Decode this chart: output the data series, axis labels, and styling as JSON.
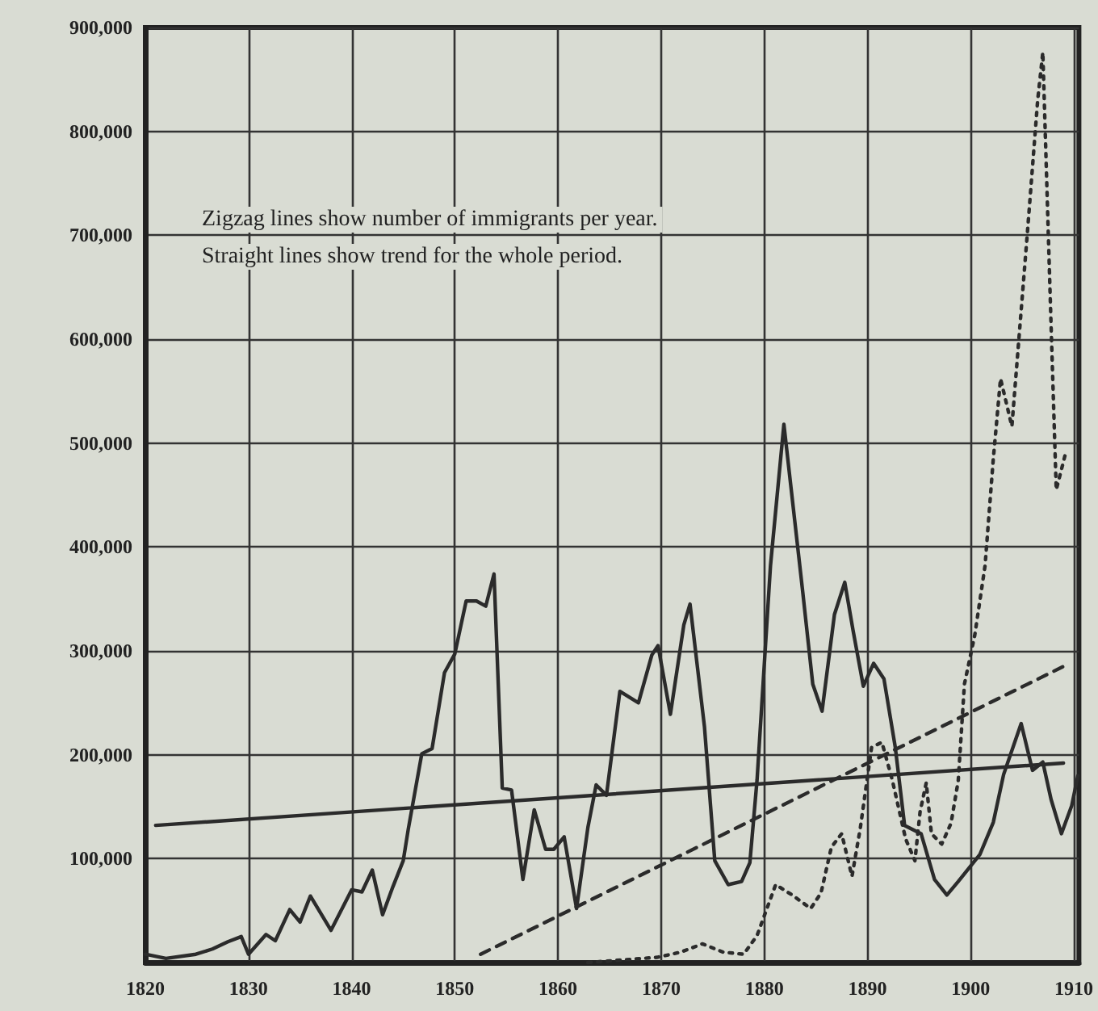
{
  "chart_data": {
    "type": "line",
    "annotations": [
      "Zigzag lines show number of immigrants per year.",
      "Straight lines show trend for the whole period."
    ],
    "xlim": [
      1820,
      1910.5
    ],
    "xticks": [
      1820,
      1830,
      1840,
      1850,
      1860,
      1870,
      1880,
      1890,
      1900,
      1910
    ],
    "ylim": [
      0,
      900000
    ],
    "yticks": [
      {
        "value": 100000,
        "label": "100,000"
      },
      {
        "value": 200000,
        "label": "200,000"
      },
      {
        "value": 300000,
        "label": "300,000"
      },
      {
        "value": 400000,
        "label": "400,000"
      },
      {
        "value": 500000,
        "label": "500,000"
      },
      {
        "value": 600000,
        "label": "600,000"
      },
      {
        "value": 700000,
        "label": "700,000"
      },
      {
        "value": 800000,
        "label": "800,000"
      },
      {
        "value": 900000,
        "label": "900,000"
      }
    ],
    "grid": true,
    "marker": "none",
    "series": [
      {
        "color": "#2b2b2b",
        "line_style": "solid",
        "x": [
          1820,
          1822,
          1824.9,
          1826.5,
          1828,
          1829.3,
          1830,
          1831.7,
          1832.6,
          1834,
          1835,
          1836,
          1838,
          1840,
          1841,
          1842,
          1843,
          1844,
          1845,
          1845.5,
          1846.8,
          1847.8,
          1849,
          1850,
          1851.1,
          1852.1,
          1853,
          1853.8,
          1854.6,
          1855.5,
          1856.6,
          1857.7,
          1858.8,
          1859.6,
          1860.6,
          1861.8,
          1862.9,
          1863.7,
          1864.7,
          1866,
          1867.8,
          1869.1,
          1869.7,
          1870.9,
          1872.2,
          1872.8,
          1874.2,
          1875.2,
          1876.5,
          1877.8,
          1878.6,
          1879.3,
          1880.6,
          1881.9,
          1883.7,
          1884.7,
          1885.6,
          1886.8,
          1887.8,
          1888.6,
          1889.6,
          1890.6,
          1891.6,
          1892.7,
          1893.6,
          1895.2,
          1896.5,
          1897.7,
          1898.8,
          1900.9,
          1902.2,
          1903.2,
          1904.9,
          1906,
          1907,
          1907.8,
          1908.8,
          1909.8,
          1910.4
        ],
        "values": [
          8000,
          4000,
          8000,
          13000,
          20000,
          25000,
          8000,
          27000,
          21000,
          51000,
          39000,
          64000,
          31000,
          70000,
          68000,
          89000,
          46000,
          73000,
          98000,
          129000,
          201000,
          206000,
          279000,
          297000,
          348000,
          348000,
          343000,
          374000,
          168000,
          166000,
          80000,
          147000,
          109000,
          109000,
          121000,
          52000,
          130000,
          171000,
          161000,
          261000,
          250000,
          296000,
          305000,
          239000,
          325000,
          345000,
          227000,
          98000,
          75000,
          78000,
          96000,
          176000,
          382000,
          518000,
          359000,
          268000,
          242000,
          335000,
          366000,
          320000,
          266000,
          288000,
          273000,
          207000,
          132000,
          124000,
          80000,
          65000,
          78000,
          104000,
          135000,
          181000,
          230000,
          185000,
          193000,
          157000,
          124000,
          151000,
          180000
        ]
      },
      {
        "color": "#2b2b2b",
        "line_style": "dotted",
        "x": [
          1862.9,
          1869.6,
          1871.9,
          1874,
          1876,
          1878,
          1879.3,
          1881.1,
          1882.7,
          1884.5,
          1885.5,
          1886.5,
          1887.5,
          1888.5,
          1889.3,
          1890.4,
          1891.4,
          1892.4,
          1893.7,
          1894.6,
          1895.1,
          1895.7,
          1896.2,
          1897.2,
          1898.1,
          1898.8,
          1899.4,
          1900.4,
          1901.4,
          1902.2,
          1902.9,
          1904,
          1905.5,
          1906.5,
          1907,
          1907.8,
          1908.3,
          1909.2
        ],
        "values": [
          0,
          5000,
          10000,
          18000,
          10000,
          8000,
          26000,
          75000,
          65000,
          52000,
          67000,
          111000,
          124000,
          83000,
          129000,
          207000,
          212000,
          176000,
          119000,
          98000,
          145000,
          173000,
          124000,
          114000,
          134000,
          175000,
          268000,
          315000,
          382000,
          485000,
          562000,
          516000,
          702000,
          830000,
          876000,
          613000,
          455000,
          490000
        ]
      },
      {
        "color": "#2b2b2b",
        "line_style": "solid",
        "x": [
          1821,
          1909
        ],
        "values": [
          132000,
          192000
        ]
      },
      {
        "color": "#2b2b2b",
        "line_style": "dashed",
        "x": [
          1852.5,
          1909
        ],
        "values": [
          8000,
          285000
        ]
      }
    ]
  }
}
